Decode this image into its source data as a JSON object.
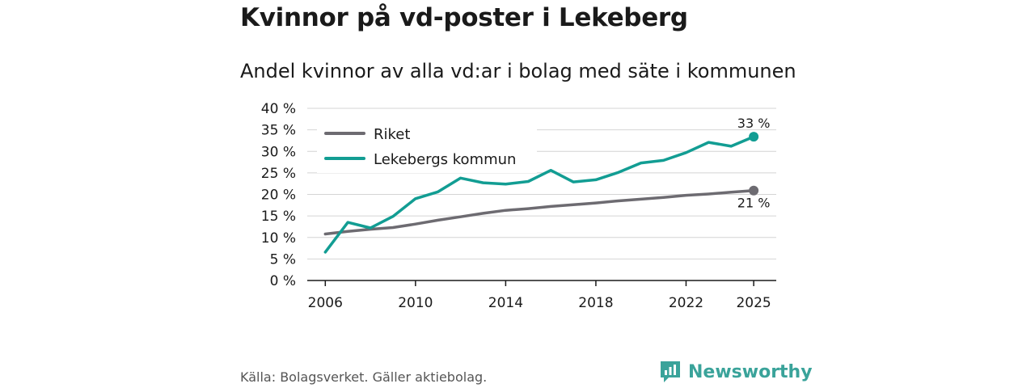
{
  "title": "Kvinnor på vd-poster i Lekeberg",
  "subtitle": "Andel kvinnor av alla vd:ar i bolag med säte i kommunen",
  "source": "Källa: Bolagsverket. Gäller aktiebolag.",
  "brand": {
    "name": "Newsworthy",
    "icon": "newsworthy-logo-icon",
    "color": "#3aa39a"
  },
  "chart_data": {
    "type": "line",
    "title": "Kvinnor på vd-poster i Lekeberg",
    "subtitle": "Andel kvinnor av alla vd:ar i bolag med säte i kommunen",
    "xlabel": "",
    "ylabel": "",
    "x": [
      2006,
      2007,
      2008,
      2009,
      2010,
      2011,
      2012,
      2013,
      2014,
      2015,
      2016,
      2017,
      2018,
      2019,
      2020,
      2021,
      2022,
      2023,
      2024,
      2025
    ],
    "xlim": [
      2005.2,
      2026.0
    ],
    "ylim": [
      0,
      40
    ],
    "yticks": [
      0,
      5,
      10,
      15,
      20,
      25,
      30,
      35,
      40
    ],
    "ytick_labels": [
      "0 %",
      "5 %",
      "10 %",
      "15 %",
      "20 %",
      "25 %",
      "30 %",
      "35 %",
      "40 %"
    ],
    "xticks": [
      2006,
      2010,
      2014,
      2018,
      2022,
      2025
    ],
    "xtick_labels": [
      "2006",
      "2010",
      "2014",
      "2018",
      "2022",
      "2025"
    ],
    "grid": true,
    "legend_position": "top-left",
    "series": [
      {
        "name": "Riket",
        "color": "#6d6b71",
        "values": [
          10.8,
          11.4,
          11.9,
          12.3,
          13.1,
          14.0,
          14.8,
          15.6,
          16.3,
          16.7,
          17.2,
          17.6,
          18.0,
          18.5,
          18.9,
          19.3,
          19.8,
          20.1,
          20.5,
          20.9
        ],
        "end_label": "21 %"
      },
      {
        "name": "Lekebergs kommun",
        "color": "#129d93",
        "values": [
          6.6,
          13.5,
          12.2,
          14.9,
          19.0,
          20.6,
          23.8,
          22.7,
          22.4,
          23.0,
          25.6,
          22.9,
          23.4,
          25.1,
          27.3,
          27.9,
          29.7,
          32.1,
          31.2,
          33.4
        ],
        "end_label": "33 %"
      }
    ]
  }
}
